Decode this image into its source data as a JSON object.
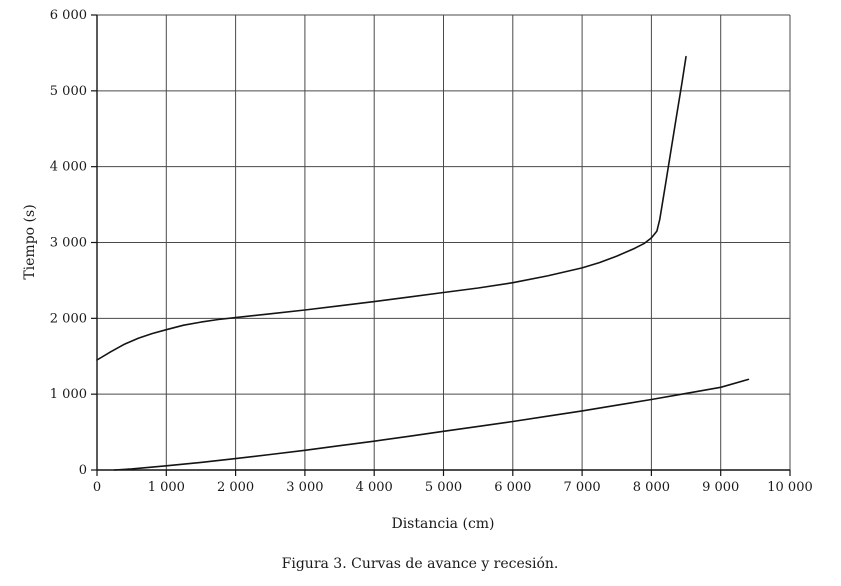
{
  "figure": {
    "ylabel": "Tiempo (s)",
    "xlabel": "Distancia (cm)",
    "caption": "Figura 3. Curvas de avance y recesión."
  },
  "colors": {
    "curve": "#141414",
    "grid": "#4a4a4a",
    "axis": "#141414",
    "text": "#1a1a1a"
  },
  "chart_data": {
    "type": "line",
    "title": "",
    "xlabel": "Distancia (cm)",
    "ylabel": "Tiempo (s)",
    "xlim": [
      0,
      10000
    ],
    "ylim": [
      0,
      6000
    ],
    "grid": true,
    "legend": "none",
    "xticks": [
      0,
      1000,
      2000,
      3000,
      4000,
      5000,
      6000,
      7000,
      8000,
      9000,
      10000
    ],
    "xtick_labels": [
      "0",
      "1 000",
      "2 000",
      "3 000",
      "4 000",
      "5 000",
      "6 000",
      "7 000",
      "8 000",
      "9 000",
      "10 000"
    ],
    "yticks": [
      0,
      1000,
      2000,
      3000,
      4000,
      5000,
      6000
    ],
    "ytick_labels": [
      "0",
      "1 000",
      "2 000",
      "3 000",
      "4 000",
      "5 000",
      "6 000"
    ],
    "series": [
      {
        "name": "recesión",
        "points": [
          [
            0,
            1450
          ],
          [
            200,
            1560
          ],
          [
            400,
            1660
          ],
          [
            600,
            1740
          ],
          [
            800,
            1800
          ],
          [
            1000,
            1850
          ],
          [
            1250,
            1910
          ],
          [
            1500,
            1950
          ],
          [
            1750,
            1985
          ],
          [
            2000,
            2010
          ],
          [
            2500,
            2060
          ],
          [
            3000,
            2110
          ],
          [
            3500,
            2165
          ],
          [
            4000,
            2220
          ],
          [
            4500,
            2280
          ],
          [
            5000,
            2340
          ],
          [
            5500,
            2400
          ],
          [
            6000,
            2470
          ],
          [
            6500,
            2560
          ],
          [
            7000,
            2665
          ],
          [
            7250,
            2735
          ],
          [
            7500,
            2820
          ],
          [
            7750,
            2920
          ],
          [
            7900,
            2990
          ],
          [
            8000,
            3060
          ],
          [
            8080,
            3150
          ],
          [
            8120,
            3300
          ],
          [
            8200,
            3750
          ],
          [
            8280,
            4200
          ],
          [
            8360,
            4650
          ],
          [
            8440,
            5100
          ],
          [
            8500,
            5450
          ]
        ]
      },
      {
        "name": "avance",
        "points": [
          [
            250,
            0
          ],
          [
            500,
            15
          ],
          [
            1000,
            55
          ],
          [
            1500,
            100
          ],
          [
            2000,
            150
          ],
          [
            2500,
            205
          ],
          [
            3000,
            260
          ],
          [
            3500,
            320
          ],
          [
            4000,
            380
          ],
          [
            4500,
            445
          ],
          [
            5000,
            510
          ],
          [
            5500,
            575
          ],
          [
            6000,
            640
          ],
          [
            6500,
            710
          ],
          [
            7000,
            780
          ],
          [
            7500,
            855
          ],
          [
            8000,
            930
          ],
          [
            8500,
            1010
          ],
          [
            9000,
            1090
          ],
          [
            9400,
            1195
          ]
        ]
      }
    ]
  }
}
